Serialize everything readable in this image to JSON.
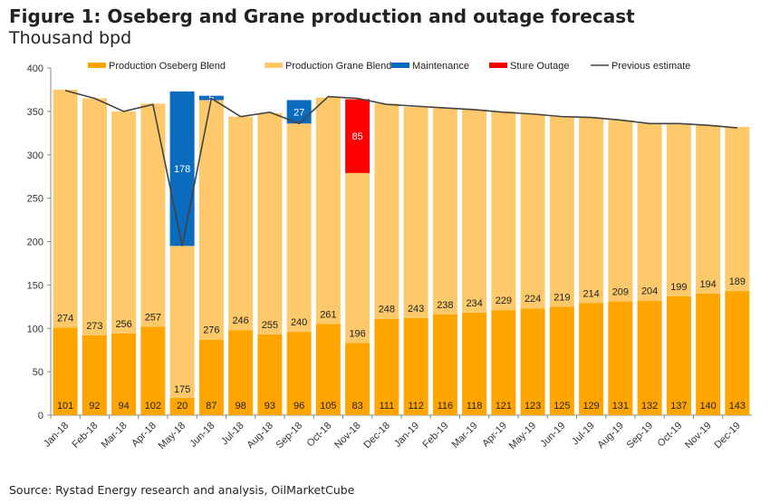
{
  "title": "Figure 1: Oseberg and Grane production and outage forecast",
  "subtitle": "Thousand bpd",
  "source": "Source: Rystad Energy research and analysis, OilMarketCube",
  "chart_data": {
    "type": "bar",
    "stacked": true,
    "ylim": [
      0,
      400
    ],
    "yticks": [
      0,
      50,
      100,
      150,
      200,
      250,
      300,
      350,
      400
    ],
    "legend_position": "top",
    "grid": false,
    "categories": [
      "Jan-18",
      "Feb-18",
      "Mar-18",
      "Apr-18",
      "May-18",
      "Jun-18",
      "Jul-18",
      "Aug-18",
      "Sep-18",
      "Oct-18",
      "Nov-18",
      "Dec-18",
      "Jan-19",
      "Feb-19",
      "Mar-19",
      "Apr-19",
      "May-19",
      "Jun-19",
      "Jul-19",
      "Aug-19",
      "Sep-19",
      "Oct-19",
      "Nov-19",
      "Dec-19"
    ],
    "series": [
      {
        "name": "Production Oseberg Blend",
        "color": "#FFA500",
        "values": [
          101,
          92,
          94,
          102,
          20,
          87,
          98,
          93,
          96,
          105,
          83,
          111,
          112,
          116,
          118,
          121,
          123,
          125,
          129,
          131,
          132,
          137,
          140,
          143
        ]
      },
      {
        "name": "Production Grane Blend",
        "color": "#FDC96A",
        "values": [
          274,
          273,
          256,
          257,
          175,
          276,
          246,
          255,
          240,
          261,
          196,
          248,
          243,
          238,
          234,
          229,
          224,
          219,
          214,
          209,
          204,
          199,
          194,
          189
        ]
      },
      {
        "name": "Maintenance",
        "color": "#0A6BBF",
        "values": [
          null,
          null,
          null,
          null,
          178,
          5,
          null,
          null,
          27,
          null,
          null,
          null,
          null,
          null,
          null,
          null,
          null,
          null,
          null,
          null,
          null,
          null,
          null,
          null
        ]
      },
      {
        "name": "Sture Outage",
        "color": "#FF0000",
        "values": [
          null,
          null,
          null,
          null,
          null,
          null,
          null,
          null,
          null,
          null,
          85,
          null,
          null,
          null,
          null,
          null,
          null,
          null,
          null,
          null,
          null,
          null,
          null,
          null
        ]
      },
      {
        "name": "Previous estimate",
        "type": "line",
        "color": "#444444",
        "values": [
          374,
          365,
          350,
          358,
          195,
          365,
          344,
          349,
          336,
          367,
          365,
          358,
          356,
          354,
          352,
          349,
          347,
          344,
          343,
          340,
          336,
          336,
          334,
          331
        ]
      }
    ]
  }
}
